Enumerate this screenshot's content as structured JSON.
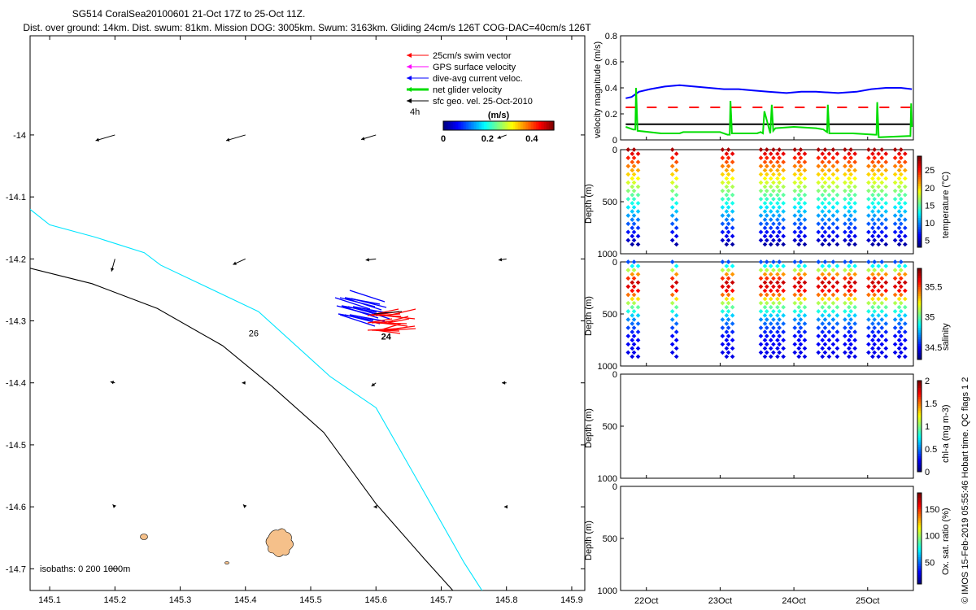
{
  "header": {
    "title_line1": "SG514 CoralSea20100601 21-Oct 17Z to 25-Oct 11Z.",
    "title_line2": "Dist. over ground: 14km. Dist. swum: 81km. Mission DOG: 3005km. Swum: 3163km. Gliding 24cm/s 126T COG-DAC=40cm/s 126T"
  },
  "colors": {
    "swim_vector": "#ff0000",
    "gps_surface": "#ff00ff",
    "dive_avg_current": "#0000ff",
    "net_glider": "#00dd00",
    "sfc_geo": "#000000",
    "isobath_200": "#000000",
    "isobath_1000": "#00e5ff",
    "island": "#f5c08a"
  },
  "chart_data": [
    {
      "type": "scatter",
      "name": "map",
      "xlim": [
        145.07,
        145.92
      ],
      "ylim": [
        -14.735,
        -13.84
      ],
      "xticks": [
        145.1,
        145.2,
        145.3,
        145.4,
        145.5,
        145.6,
        145.7,
        145.8,
        145.9
      ],
      "yticks": [
        -14.0,
        -14.1,
        -14.2,
        -14.3,
        -14.4,
        -14.5,
        -14.6,
        -14.7
      ],
      "xtick_labels": [
        "145.1",
        "145.2",
        "145.3",
        "145.4",
        "145.5",
        "145.6",
        "145.7",
        "145.8",
        "145.9"
      ],
      "ytick_labels": [
        "-14",
        "-14.1",
        "-14.2",
        "-14.3",
        "-14.4",
        "-14.5",
        "-14.6",
        "-14.7"
      ],
      "legend": {
        "placement": "top-right",
        "entries": [
          {
            "label": "25cm/s swim vector",
            "color": "#ff0000"
          },
          {
            "label": "GPS surface velocity",
            "color": "#ff00ff"
          },
          {
            "label": "dive-avg current veloc.",
            "color": "#0000ff"
          },
          {
            "label": "net glider velocity",
            "color": "#00dd00"
          },
          {
            "label": "sfc geo. vel. 25-Oct-2010",
            "color": "#000000"
          }
        ],
        "extra_label": "4h"
      },
      "colorbar": {
        "unit": "(m/s)",
        "tick_labels": [
          "0",
          "0.2",
          "0.4"
        ],
        "ticks": [
          0,
          0.2,
          0.4
        ],
        "range": [
          0,
          0.5
        ]
      },
      "annotations": [
        {
          "text": "26",
          "x": 145.405,
          "y": -14.325
        },
        {
          "text": "24",
          "x": 145.608,
          "y": -14.33
        },
        {
          "text": "isobaths: 0   200  1000m",
          "x": 145.085,
          "y": -14.705
        }
      ],
      "isobaths": [
        {
          "depth": 1000,
          "color": "#00e5ff",
          "x": [
            145.07,
            145.1,
            145.17,
            145.245,
            145.27,
            145.42,
            145.53,
            145.6,
            145.665,
            145.735,
            145.79
          ],
          "y": [
            -14.12,
            -14.145,
            -14.165,
            -14.19,
            -14.21,
            -14.285,
            -14.39,
            -14.44,
            -14.56,
            -14.69,
            -14.78
          ]
        },
        {
          "depth": 200,
          "color": "#000000",
          "x": [
            145.07,
            145.165,
            145.265,
            145.365,
            145.44,
            145.52,
            145.6,
            145.675,
            145.735
          ],
          "y": [
            -14.215,
            -14.24,
            -14.28,
            -14.34,
            -14.405,
            -14.48,
            -14.595,
            -14.685,
            -14.755
          ]
        }
      ],
      "surface_geo_vectors": {
        "x": [
          145.2,
          145.2,
          145.2,
          145.2,
          145.4,
          145.4,
          145.4,
          145.4,
          145.6,
          145.6,
          145.6,
          145.6,
          145.8,
          145.8,
          145.8,
          145.8
        ],
        "y": [
          -14.0,
          -14.2,
          -14.4,
          -14.6,
          -14.0,
          -14.2,
          -14.4,
          -14.6,
          -14.0,
          -14.2,
          -14.4,
          -14.6,
          -14.0,
          -14.2,
          -14.4,
          -14.6
        ],
        "u": [
          -0.17,
          -0.03,
          -0.04,
          -0.02,
          -0.17,
          -0.11,
          -0.03,
          -0.02,
          -0.13,
          -0.09,
          -0.04,
          -0.02,
          -0.08,
          -0.07,
          -0.04,
          -0.02
        ],
        "v": [
          -0.05,
          -0.11,
          0.01,
          0.02,
          -0.05,
          -0.05,
          0.0,
          0.02,
          -0.04,
          -0.01,
          -0.03,
          0.0,
          -0.03,
          -0.01,
          0.0,
          0.0
        ]
      }
    },
    {
      "type": "line",
      "name": "velocity_magnitude",
      "ylabel": "velocity magnitude (m/s)",
      "ylim": [
        0,
        0.8
      ],
      "yticks": [
        0,
        0.2,
        0.4,
        0.6,
        0.8
      ],
      "ytick_labels": [
        "0",
        "0.2",
        "0.4",
        "0.6",
        "0.8"
      ],
      "xlim": [
        21.65,
        25.62
      ],
      "series": [
        {
          "color": "#0000ff",
          "style": "solid",
          "x": [
            21.72,
            21.8,
            21.9,
            22.05,
            22.25,
            22.45,
            22.65,
            22.85,
            23.05,
            23.25,
            23.45,
            23.65,
            23.9,
            24.1,
            24.3,
            24.6,
            24.85,
            25.05,
            25.25,
            25.45,
            25.6
          ],
          "values": [
            0.32,
            0.33,
            0.37,
            0.39,
            0.41,
            0.42,
            0.41,
            0.4,
            0.39,
            0.39,
            0.38,
            0.37,
            0.36,
            0.37,
            0.37,
            0.36,
            0.37,
            0.39,
            0.4,
            0.4,
            0.39
          ]
        },
        {
          "color": "#ff0000",
          "style": "dashed",
          "x": [
            21.72,
            25.6
          ],
          "values": [
            0.25,
            0.25
          ]
        },
        {
          "color": "#000000",
          "style": "solid",
          "x": [
            21.72,
            25.6
          ],
          "values": [
            0.12,
            0.12
          ]
        },
        {
          "color": "#00dd00",
          "style": "solid",
          "x": [
            21.72,
            21.82,
            21.85,
            21.86,
            21.88,
            22.2,
            22.45,
            22.5,
            23.0,
            23.1,
            23.13,
            23.14,
            23.16,
            23.5,
            23.55,
            23.58,
            23.6,
            23.68,
            23.7,
            23.72,
            23.75,
            24.0,
            24.3,
            24.4,
            24.45,
            24.46,
            24.48,
            24.8,
            25.1,
            25.12,
            25.13,
            25.15,
            25.55,
            25.58,
            25.59,
            25.6
          ],
          "values": [
            0.1,
            0.08,
            0.08,
            0.4,
            0.07,
            0.05,
            0.05,
            0.06,
            0.06,
            0.04,
            0.04,
            0.3,
            0.05,
            0.05,
            0.06,
            0.05,
            0.22,
            0.05,
            0.27,
            0.07,
            0.09,
            0.1,
            0.09,
            0.08,
            0.06,
            0.27,
            0.05,
            0.05,
            0.04,
            0.04,
            0.29,
            0.02,
            0.03,
            0.03,
            0.28,
            0.1
          ]
        }
      ]
    },
    {
      "type": "scatter",
      "name": "temperature_section",
      "ylabel": "Depth (m)",
      "ylim": [
        1000,
        0
      ],
      "yticks": [
        0,
        500,
        1000
      ],
      "ytick_labels": [
        "0",
        "500",
        "1000"
      ],
      "xlim": [
        21.65,
        25.62
      ],
      "colorbar": {
        "label": "temperature (°C)",
        "range": [
          3,
          29
        ],
        "ticks": [
          5,
          10,
          15,
          20,
          25
        ],
        "tick_labels": [
          "5",
          "10",
          "15",
          "20",
          "25"
        ]
      },
      "profile_times": [
        21.78,
        21.86,
        22.38,
        23.06,
        23.14,
        23.58,
        23.66,
        23.75,
        23.83,
        24.04,
        24.12,
        24.36,
        24.45,
        24.56,
        24.72,
        24.8,
        25.04,
        25.12,
        25.22,
        25.4,
        25.48
      ],
      "profile_max_depth": 910,
      "surface_to_bottom_value": [
        28,
        4
      ]
    },
    {
      "type": "scatter",
      "name": "salinity_section",
      "ylabel": "Depth (m)",
      "ylim": [
        1000,
        0
      ],
      "yticks": [
        0,
        500,
        1000
      ],
      "ytick_labels": [
        "0",
        "500",
        "1000"
      ],
      "xlim": [
        21.65,
        25.62
      ],
      "colorbar": {
        "label": "salinity",
        "range": [
          34.3,
          35.8
        ],
        "ticks": [
          34.5,
          35,
          35.5
        ],
        "tick_labels": [
          "34.5",
          "35",
          "35.5"
        ]
      },
      "profile_times": [
        21.78,
        21.86,
        22.38,
        23.06,
        23.14,
        23.58,
        23.66,
        23.75,
        23.83,
        24.04,
        24.12,
        24.36,
        24.45,
        24.56,
        24.72,
        24.8,
        25.04,
        25.12,
        25.22,
        25.4,
        25.48
      ],
      "profile_max_depth": 910,
      "salinity_profile_by_depth": {
        "depth": [
          0,
          120,
          200,
          280,
          400,
          550,
          700,
          910
        ],
        "values": [
          34.6,
          35.4,
          35.7,
          35.6,
          35.1,
          34.7,
          34.5,
          34.45
        ]
      }
    },
    {
      "type": "scatter",
      "name": "chl_a_section",
      "ylabel": "Depth (m)",
      "ylim": [
        1000,
        0
      ],
      "yticks": [
        0,
        500,
        1000
      ],
      "ytick_labels": [
        "0",
        "500",
        "1000"
      ],
      "xlim": [
        21.65,
        25.62
      ],
      "colorbar": {
        "label": "chl-a (mg m-3)",
        "range": [
          0,
          2
        ],
        "ticks": [
          0,
          0.5,
          1,
          1.5,
          2
        ],
        "tick_labels": [
          "0",
          "0.5",
          "1",
          "1.5",
          "2"
        ]
      }
    },
    {
      "type": "scatter",
      "name": "oxygen_section",
      "ylabel": "Depth (m)",
      "ylim": [
        1000,
        0
      ],
      "yticks": [
        0,
        500,
        1000
      ],
      "ytick_labels": [
        "0",
        "500",
        "1000"
      ],
      "xlim": [
        21.65,
        25.62
      ],
      "xticks": [
        22,
        23,
        24,
        25
      ],
      "xtick_labels": [
        "22Oct",
        "23Oct",
        "24Oct",
        "25Oct"
      ],
      "colorbar": {
        "label": "Ox. sat. ratio (%)",
        "range": [
          10,
          180
        ],
        "ticks": [
          50,
          100,
          150
        ],
        "tick_labels": [
          "50",
          "100",
          "150"
        ]
      }
    }
  ],
  "footer": {
    "credit": "© IMOS 15-Feb-2019 05:55:46 Hobart time. QC flags 1 2"
  }
}
